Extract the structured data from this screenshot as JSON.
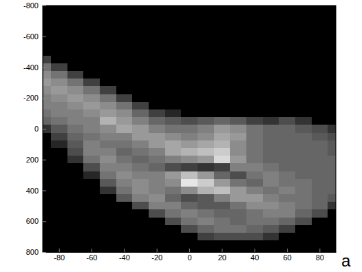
{
  "chart_data": {
    "type": "heatmap",
    "panel_label": "a",
    "color": "#ffffff",
    "xlim": [
      -90,
      90
    ],
    "ylim": [
      800,
      -800
    ],
    "xticks": [
      -80,
      -60,
      -40,
      -20,
      0,
      20,
      40,
      60,
      80
    ],
    "yticks": [
      -800,
      -600,
      -400,
      -200,
      0,
      200,
      400,
      600,
      800
    ],
    "x": [
      -90,
      -80,
      -70,
      -60,
      -50,
      -40,
      -30,
      -20,
      -10,
      0,
      10,
      20,
      30,
      40,
      50,
      60,
      70,
      80,
      90
    ],
    "y": [
      -800,
      -750,
      -700,
      -650,
      -600,
      -550,
      -500,
      -450,
      -400,
      -350,
      -300,
      -250,
      -200,
      -150,
      -100,
      -50,
      0,
      50,
      100,
      150,
      200,
      250,
      300,
      350,
      400,
      450,
      500,
      550,
      600,
      650,
      700,
      750,
      800
    ],
    "values": [
      [
        0,
        0,
        0,
        0,
        0,
        0,
        0,
        0,
        0,
        0,
        0,
        0,
        0,
        0,
        0,
        0,
        0,
        0,
        0
      ],
      [
        0,
        0,
        0,
        0,
        0,
        0,
        0,
        0,
        0,
        0,
        0,
        0,
        0,
        0,
        0,
        0,
        0,
        0,
        0
      ],
      [
        0,
        0,
        0,
        0,
        0,
        0,
        0,
        0,
        0,
        0,
        0,
        0,
        0,
        0,
        0,
        0,
        0,
        0,
        0
      ],
      [
        0,
        0,
        0,
        0,
        0,
        0,
        0,
        0,
        0,
        0,
        0,
        0,
        0,
        0,
        0,
        0,
        0,
        0,
        0
      ],
      [
        0,
        0,
        0,
        0,
        0,
        0,
        0,
        0,
        0,
        0,
        0,
        0,
        0,
        0,
        0,
        0,
        0,
        0,
        0
      ],
      [
        0,
        0,
        0,
        0,
        0,
        0,
        0,
        0,
        0,
        0,
        0,
        0,
        0,
        0,
        0,
        0,
        0,
        0,
        0
      ],
      [
        0,
        0,
        0,
        0,
        0,
        0,
        0,
        0,
        0,
        0,
        0,
        0,
        0,
        0,
        0,
        0,
        0,
        0,
        0
      ],
      [
        0.25,
        0,
        0,
        0,
        0,
        0,
        0,
        0,
        0,
        0,
        0,
        0,
        0,
        0,
        0,
        0,
        0,
        0,
        0
      ],
      [
        0.45,
        0.25,
        0,
        0,
        0,
        0,
        0,
        0,
        0,
        0,
        0,
        0,
        0,
        0,
        0,
        0,
        0,
        0,
        0
      ],
      [
        0.55,
        0.45,
        0.25,
        0,
        0,
        0,
        0,
        0,
        0,
        0,
        0,
        0,
        0,
        0,
        0,
        0,
        0,
        0,
        0
      ],
      [
        0.6,
        0.55,
        0.45,
        0.25,
        0,
        0,
        0,
        0,
        0,
        0,
        0,
        0,
        0,
        0,
        0,
        0,
        0,
        0,
        0
      ],
      [
        0.55,
        0.6,
        0.55,
        0.45,
        0.25,
        0,
        0,
        0,
        0,
        0,
        0,
        0,
        0,
        0,
        0,
        0,
        0,
        0,
        0
      ],
      [
        0.5,
        0.55,
        0.6,
        0.55,
        0.45,
        0.25,
        0,
        0,
        0,
        0,
        0,
        0,
        0,
        0,
        0,
        0,
        0,
        0,
        0
      ],
      [
        0.5,
        0.5,
        0.55,
        0.6,
        0.55,
        0.45,
        0.25,
        0,
        0,
        0,
        0,
        0,
        0,
        0,
        0,
        0,
        0,
        0,
        0
      ],
      [
        0.45,
        0.5,
        0.5,
        0.55,
        0.6,
        0.55,
        0.4,
        0.25,
        0.15,
        0,
        0,
        0,
        0,
        0,
        0,
        0,
        0,
        0,
        0
      ],
      [
        0.4,
        0.45,
        0.5,
        0.5,
        0.7,
        0.6,
        0.5,
        0.4,
        0.35,
        0.3,
        0.35,
        0.4,
        0.35,
        0.25,
        0.2,
        0.3,
        0.2,
        0,
        0
      ],
      [
        0.2,
        0.35,
        0.45,
        0.5,
        0.55,
        0.65,
        0.6,
        0.5,
        0.45,
        0.45,
        0.5,
        0.6,
        0.55,
        0.45,
        0.4,
        0.4,
        0.35,
        0.3,
        0.2
      ],
      [
        0,
        0.25,
        0.4,
        0.45,
        0.5,
        0.5,
        0.6,
        0.6,
        0.55,
        0.5,
        0.55,
        0.65,
        0.6,
        0.45,
        0.4,
        0.4,
        0.4,
        0.35,
        0.3
      ],
      [
        0,
        0.15,
        0.35,
        0.5,
        0.45,
        0.45,
        0.5,
        0.6,
        0.65,
        0.6,
        0.65,
        0.7,
        0.55,
        0.45,
        0.4,
        0.4,
        0.4,
        0.4,
        0.35
      ],
      [
        0,
        0,
        0.3,
        0.5,
        0.5,
        0.4,
        0.45,
        0.5,
        0.65,
        0.7,
        0.75,
        0.8,
        0.55,
        0.45,
        0.4,
        0.4,
        0.4,
        0.4,
        0.35
      ],
      [
        0,
        0,
        0.2,
        0.45,
        0.55,
        0.45,
        0.4,
        0.45,
        0.5,
        0.55,
        0.6,
        0.85,
        0.6,
        0.45,
        0.4,
        0.4,
        0.4,
        0.4,
        0.4
      ],
      [
        0,
        0,
        0,
        0.3,
        0.5,
        0.5,
        0.45,
        0.4,
        0.3,
        0.25,
        0.2,
        0.25,
        0.5,
        0.5,
        0.45,
        0.4,
        0.4,
        0.4,
        0.4
      ],
      [
        0,
        0,
        0,
        0.15,
        0.45,
        0.55,
        0.5,
        0.5,
        0.6,
        0.75,
        0.6,
        0.4,
        0.3,
        0.45,
        0.5,
        0.45,
        0.4,
        0.4,
        0.4
      ],
      [
        0,
        0,
        0,
        0,
        0.35,
        0.5,
        0.55,
        0.5,
        0.55,
        0.9,
        0.8,
        0.6,
        0.45,
        0.4,
        0.5,
        0.45,
        0.45,
        0.4,
        0.4
      ],
      [
        0,
        0,
        0,
        0,
        0.2,
        0.45,
        0.55,
        0.5,
        0.45,
        0.55,
        0.7,
        0.75,
        0.6,
        0.5,
        0.45,
        0.5,
        0.45,
        0.4,
        0.4
      ],
      [
        0,
        0,
        0,
        0,
        0,
        0.35,
        0.5,
        0.55,
        0.4,
        0.3,
        0.35,
        0.5,
        0.6,
        0.6,
        0.5,
        0.45,
        0.45,
        0.4,
        0.35
      ],
      [
        0,
        0,
        0,
        0,
        0,
        0,
        0.3,
        0.5,
        0.5,
        0.4,
        0.35,
        0.35,
        0.45,
        0.55,
        0.55,
        0.5,
        0.45,
        0.4,
        0.2
      ],
      [
        0,
        0,
        0,
        0,
        0,
        0,
        0,
        0.3,
        0.45,
        0.5,
        0.45,
        0.4,
        0.4,
        0.45,
        0.5,
        0.5,
        0.4,
        0.3,
        0
      ],
      [
        0,
        0,
        0,
        0,
        0,
        0,
        0,
        0,
        0.3,
        0.45,
        0.5,
        0.45,
        0.4,
        0.45,
        0.45,
        0.4,
        0.3,
        0,
        0
      ],
      [
        0,
        0,
        0,
        0,
        0,
        0,
        0,
        0,
        0,
        0.3,
        0.4,
        0.45,
        0.45,
        0.4,
        0.35,
        0.25,
        0,
        0,
        0
      ],
      [
        0,
        0,
        0,
        0,
        0,
        0,
        0,
        0,
        0,
        0,
        0.25,
        0.3,
        0.3,
        0.3,
        0.2,
        0,
        0,
        0,
        0
      ],
      [
        0,
        0,
        0,
        0,
        0,
        0,
        0,
        0,
        0,
        0,
        0,
        0,
        0,
        0,
        0,
        0,
        0,
        0,
        0
      ],
      [
        0,
        0,
        0,
        0,
        0,
        0,
        0,
        0,
        0,
        0,
        0,
        0,
        0,
        0,
        0,
        0,
        0,
        0,
        0
      ]
    ]
  }
}
